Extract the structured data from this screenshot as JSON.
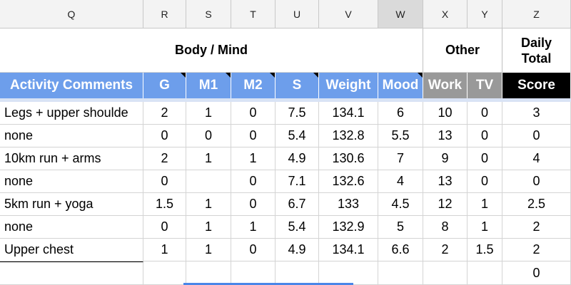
{
  "column_letters": [
    "Q",
    "R",
    "S",
    "T",
    "U",
    "V",
    "W",
    "X",
    "Y",
    "Z"
  ],
  "selected_column": "W",
  "section_headers": {
    "body_mind": "Body / Mind",
    "other": "Other",
    "daily_total_line1": "Daily",
    "daily_total_line2": "Total"
  },
  "field_headers": {
    "activity_comments": "Activity Comments",
    "g": "G",
    "m1": "M1",
    "m2": "M2",
    "s": "S",
    "weight": "Weight",
    "mood": "Mood",
    "work": "Work",
    "tv": "TV",
    "score": "Score"
  },
  "colors": {
    "header_blue": "#6d9eeb",
    "header_gray": "#999999",
    "header_black": "#000000",
    "selection_blue": "#4a86e8"
  },
  "rows": [
    {
      "comment": "Legs + upper shoulde",
      "g": "2",
      "m1": "1",
      "m2": "0",
      "s": "7.5",
      "weight": "134.1",
      "mood": "6",
      "work": "10",
      "tv": "0",
      "score": "3"
    },
    {
      "comment": "none",
      "g": "0",
      "m1": "0",
      "m2": "0",
      "s": "5.4",
      "weight": "132.8",
      "mood": "5.5",
      "work": "13",
      "tv": "0",
      "score": "0"
    },
    {
      "comment": "10km run + arms",
      "g": "2",
      "m1": "1",
      "m2": "1",
      "s": "4.9",
      "weight": "130.6",
      "mood": "7",
      "work": "9",
      "tv": "0",
      "score": "4"
    },
    {
      "comment": "none",
      "g": "0",
      "m1": "",
      "m2": "0",
      "s": "7.1",
      "weight": "132.6",
      "mood": "4",
      "work": "13",
      "tv": "0",
      "score": "0"
    },
    {
      "comment": "5km run + yoga",
      "g": "1.5",
      "m1": "1",
      "m2": "0",
      "s": "6.7",
      "weight": "133",
      "mood": "4.5",
      "work": "12",
      "tv": "1",
      "score": "2.5"
    },
    {
      "comment": "none",
      "g": "0",
      "m1": "1",
      "m2": "1",
      "s": "5.4",
      "weight": "132.9",
      "mood": "5",
      "work": "8",
      "tv": "1",
      "score": "2"
    },
    {
      "comment": "Upper chest",
      "g": "1",
      "m1": "1",
      "m2": "0",
      "s": "4.9",
      "weight": "134.1",
      "mood": "6.6",
      "work": "2",
      "tv": "1.5",
      "score": "2"
    },
    {
      "comment": "",
      "g": "",
      "m1": "",
      "m2": "",
      "s": "",
      "weight": "",
      "mood": "",
      "work": "",
      "tv": "",
      "score": "0"
    }
  ]
}
